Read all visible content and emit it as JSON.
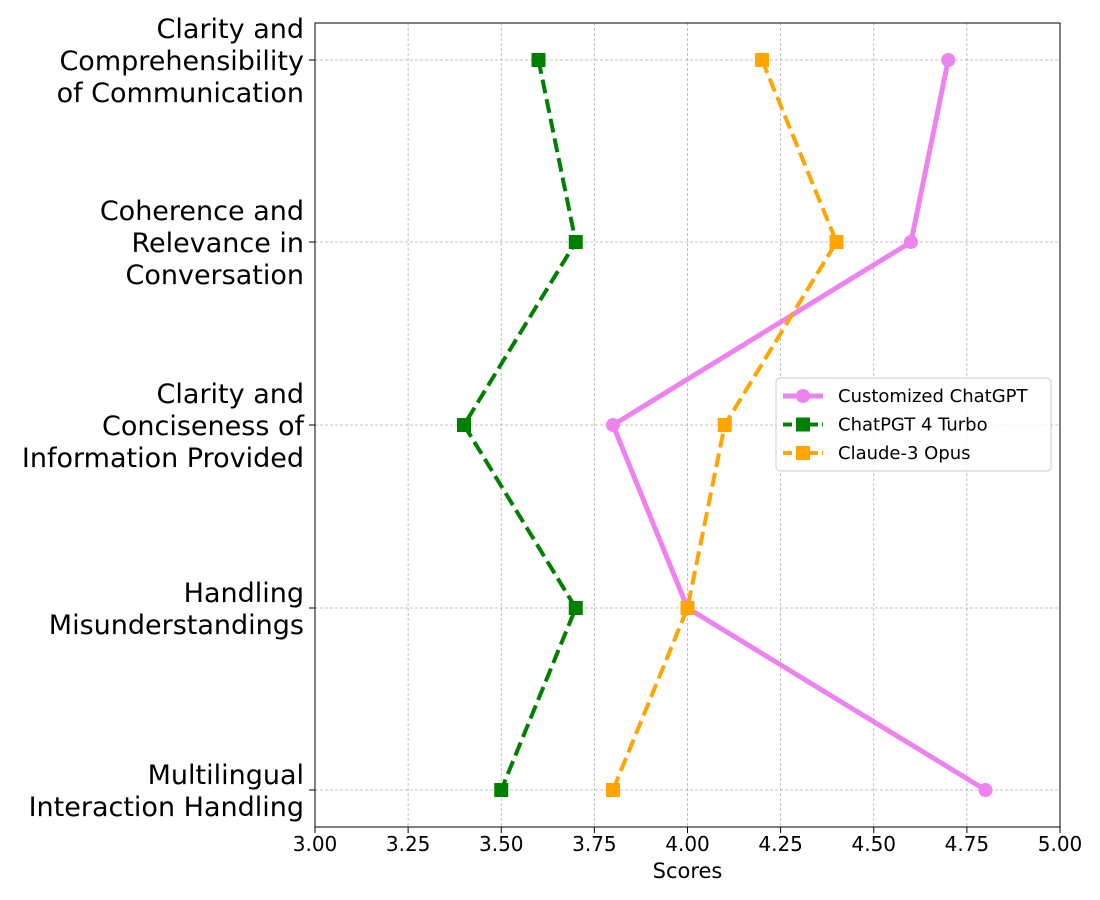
{
  "chart_data": {
    "type": "line",
    "orientation": "horizontal",
    "title": "",
    "xlabel": "Scores",
    "ylabel": "",
    "xlim": [
      3.0,
      5.0
    ],
    "xticks": [
      "3.00",
      "3.25",
      "3.50",
      "3.75",
      "4.00",
      "4.25",
      "4.50",
      "4.75",
      "5.00"
    ],
    "categories": [
      "Clarity and\nComprehensibility\nof Communication",
      "Coherence and\nRelevance in\nConversation",
      "Clarity and\nConciseness of\nInformation Provided",
      "Handling\nMisunderstandings",
      "Multilingual\nInteraction Handling"
    ],
    "grid": true,
    "legend_position": "center-right",
    "series": [
      {
        "name": "Customized ChatGPT",
        "color": "#ee82ee",
        "marker": "circle",
        "linestyle": "solid",
        "values": [
          4.7,
          4.6,
          3.8,
          4.0,
          4.8
        ]
      },
      {
        "name": "ChatPGT 4 Turbo",
        "color": "#008000",
        "marker": "square",
        "linestyle": "dashed",
        "values": [
          3.6,
          3.7,
          3.4,
          3.7,
          3.5
        ]
      },
      {
        "name": "Claude-3 Opus",
        "color": "#ffa500",
        "marker": "square",
        "linestyle": "dashed",
        "values": [
          4.2,
          4.4,
          4.1,
          4.0,
          3.8
        ]
      }
    ]
  }
}
